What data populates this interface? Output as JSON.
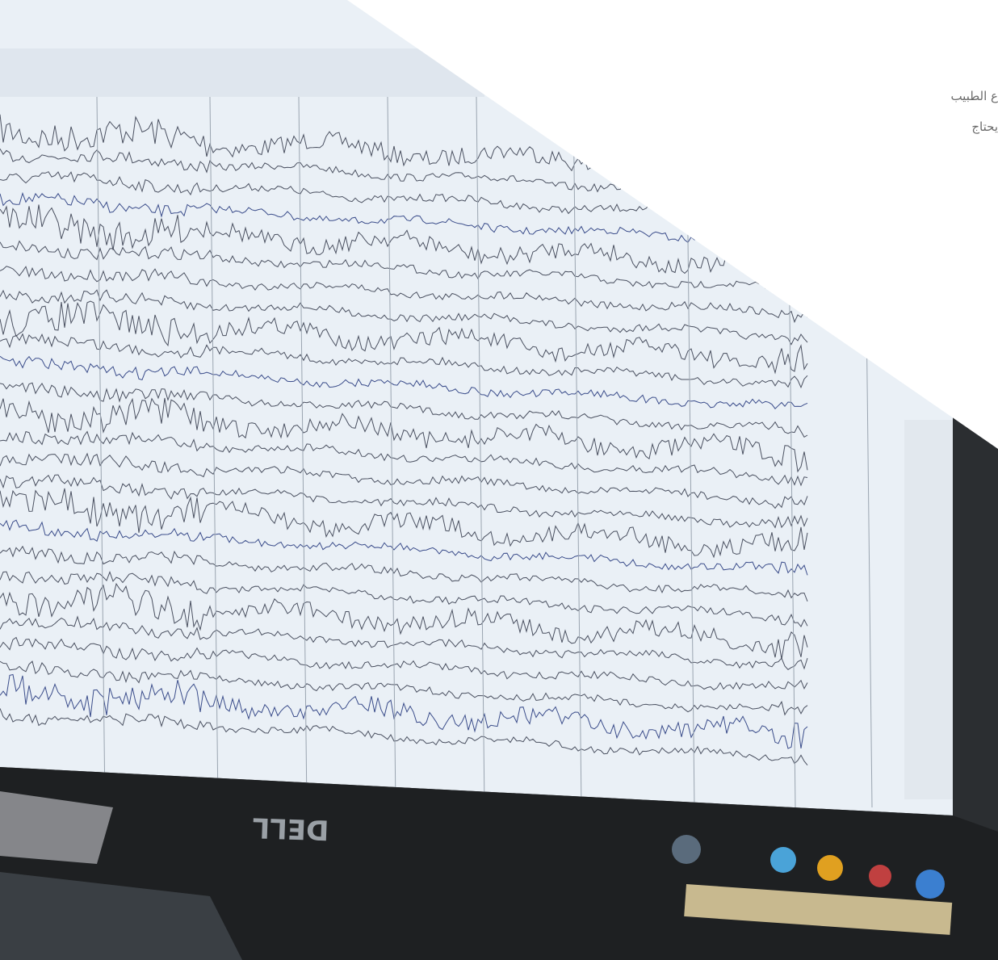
{
  "overlay": {
    "line1": "ع الطبيب",
    "line2": "يحتاج"
  },
  "monitor": {
    "brand": "DELL"
  }
}
